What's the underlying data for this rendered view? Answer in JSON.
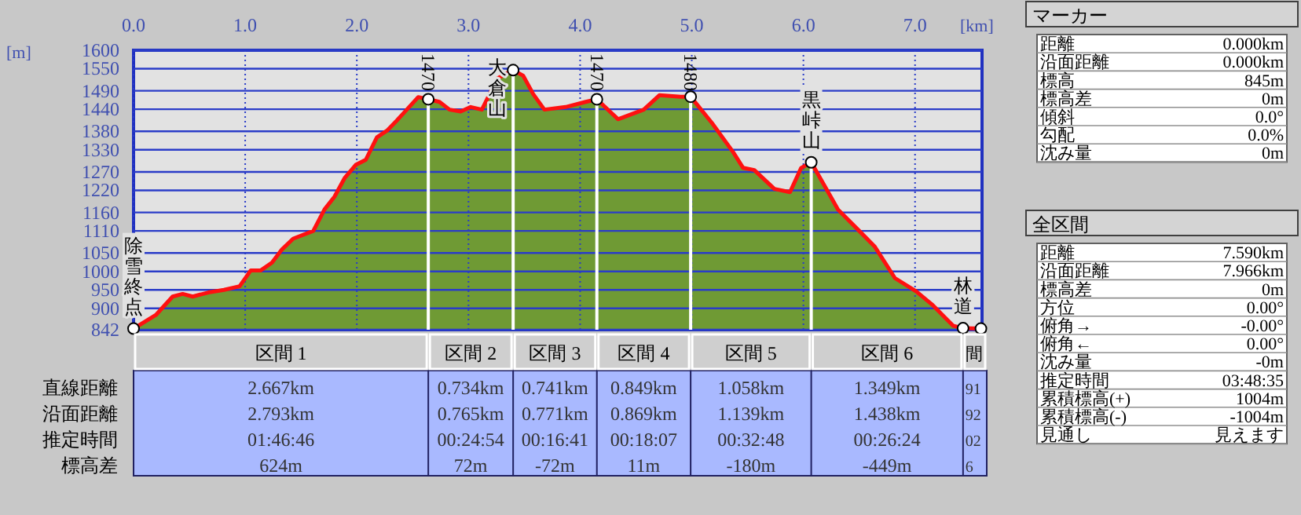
{
  "chart_data": [
    {
      "type": "area",
      "xlabel": "[km]",
      "ylabel": "[m]",
      "xlim": [
        0,
        7.6
      ],
      "ylim": [
        842,
        1600
      ],
      "xticks": [
        {
          "value": 0,
          "label": "0.0"
        },
        {
          "value": 1,
          "label": "1.0"
        },
        {
          "value": 2,
          "label": "2.0"
        },
        {
          "value": 3,
          "label": "3.0"
        },
        {
          "value": 4,
          "label": "4.0"
        },
        {
          "value": 5,
          "label": "5.0"
        },
        {
          "value": 6,
          "label": "6.0"
        },
        {
          "value": 7,
          "label": "7.0"
        }
      ],
      "yticks": [
        842,
        900,
        950,
        1000,
        1050,
        1110,
        1160,
        1220,
        1270,
        1330,
        1380,
        1440,
        1490,
        1550,
        1600
      ],
      "grid": true,
      "x": [
        0,
        0.2,
        0.35,
        0.44,
        0.53,
        0.67,
        0.81,
        0.95,
        1.05,
        1.14,
        1.24,
        1.33,
        1.43,
        1.61,
        1.71,
        1.8,
        1.89,
        1.99,
        2.08,
        2.18,
        2.27,
        2.36,
        2.55,
        2.64,
        2.74,
        2.83,
        2.93,
        3.02,
        3.12,
        3.26,
        3.4,
        3.49,
        3.58,
        3.68,
        3.87,
        4.05,
        4.15,
        4.34,
        4.57,
        4.71,
        4.9,
        4.99,
        5.18,
        5.37,
        5.46,
        5.56,
        5.74,
        5.88,
        5.98,
        6.07,
        6.31,
        6.5,
        6.64,
        6.82,
        7.01,
        7.15,
        7.34,
        7.43,
        7.59
      ],
      "series": [
        {
          "color": "#6f9a34",
          "values": [
            845,
            882,
            932,
            939,
            932,
            943,
            950,
            960,
            1003,
            1003,
            1024,
            1060,
            1089,
            1110,
            1168,
            1203,
            1253,
            1289,
            1303,
            1364,
            1382,
            1410,
            1473,
            1467,
            1460,
            1439,
            1434,
            1446,
            1439,
            1524,
            1546,
            1531,
            1481,
            1439,
            1446,
            1460,
            1467,
            1413,
            1439,
            1478,
            1474,
            1474,
            1403,
            1324,
            1281,
            1275,
            1224,
            1215,
            1281,
            1296,
            1168,
            1110,
            1067,
            982,
            946,
            911,
            853,
            846,
            845
          ]
        },
        {
          "type": "scatter",
          "color": "#ffffff",
          "marker": "circle",
          "x": [
            0,
            2.64,
            3.4,
            4.15,
            4.99,
            6.07,
            7.43,
            7.59
          ],
          "values": [
            845,
            1467,
            1546,
            1467,
            1474,
            1296,
            846,
            845
          ]
        }
      ],
      "ref_lines": [
        {
          "axis": "x",
          "value": 2.64,
          "color": "#ffffff"
        },
        {
          "axis": "x",
          "value": 3.4,
          "color": "#ffffff"
        },
        {
          "axis": "x",
          "value": 4.15,
          "color": "#ffffff"
        },
        {
          "axis": "x",
          "value": 4.99,
          "color": "#ffffff"
        },
        {
          "axis": "x",
          "value": 6.07,
          "color": "#ffffff"
        }
      ],
      "annotations": [
        {
          "text": "除雪終点",
          "x": 0,
          "y": 845
        },
        {
          "text": "1470",
          "x": 2.64,
          "y": 1467
        },
        {
          "text": "大倉山",
          "x": 3.4,
          "y": 1546
        },
        {
          "text": "1470",
          "x": 4.15,
          "y": 1467
        },
        {
          "text": "1480",
          "x": 4.99,
          "y": 1474
        },
        {
          "text": "黒峠山",
          "x": 6.07,
          "y": 1296
        },
        {
          "text": "林道",
          "x": 7.43,
          "y": 846
        }
      ]
    },
    {
      "type": "other",
      "categories": [
        "区間 1",
        "区間 2",
        "区間 3",
        "区間 4",
        "区間 5",
        "区間 6",
        "間"
      ],
      "y_categories": [
        "直線距離",
        "沿面距離",
        "推定時間",
        "標高差"
      ],
      "cell_labels": [
        [
          "2.667km",
          "0.734km",
          "0.741km",
          "0.849km",
          "1.058km",
          "1.349km",
          "91"
        ],
        [
          "2.793km",
          "0.765km",
          "0.771km",
          "0.869km",
          "1.139km",
          "1.438km",
          "92"
        ],
        [
          "01:46:46",
          "00:24:54",
          "00:16:41",
          "00:18:07",
          "00:32:48",
          "00:26:24",
          "02"
        ],
        [
          "624m",
          "72m",
          "-72m",
          "11m",
          "-180m",
          "-449m",
          "6"
        ]
      ]
    },
    {
      "type": "other",
      "title": "マーカー",
      "y_categories": [
        "距離",
        "沿面距離",
        "標高",
        "標高差",
        "傾斜",
        "勾配",
        "沈み量"
      ],
      "cell_labels": [
        [
          "0.000km"
        ],
        [
          "0.000km"
        ],
        [
          "845m"
        ],
        [
          "0m"
        ],
        [
          "0.0°"
        ],
        [
          "0.0%"
        ],
        [
          "0m"
        ]
      ]
    },
    {
      "type": "other",
      "title": "全区間",
      "y_categories": [
        "距離",
        "沿面距離",
        "標高差",
        "方位",
        "俯角→",
        "俯角←",
        "沈み量",
        "推定時間",
        "累積標高(+)",
        "累積標高(-)",
        "見通し"
      ],
      "cell_labels": [
        [
          "7.590km"
        ],
        [
          "7.966km"
        ],
        [
          "0m"
        ],
        [
          "0.00°"
        ],
        [
          "-0.00°"
        ],
        [
          "0.00°"
        ],
        [
          "-0m"
        ],
        [
          "03:48:35"
        ],
        [
          "1004m"
        ],
        [
          "-1004m"
        ],
        [
          "見えます"
        ]
      ]
    }
  ]
}
